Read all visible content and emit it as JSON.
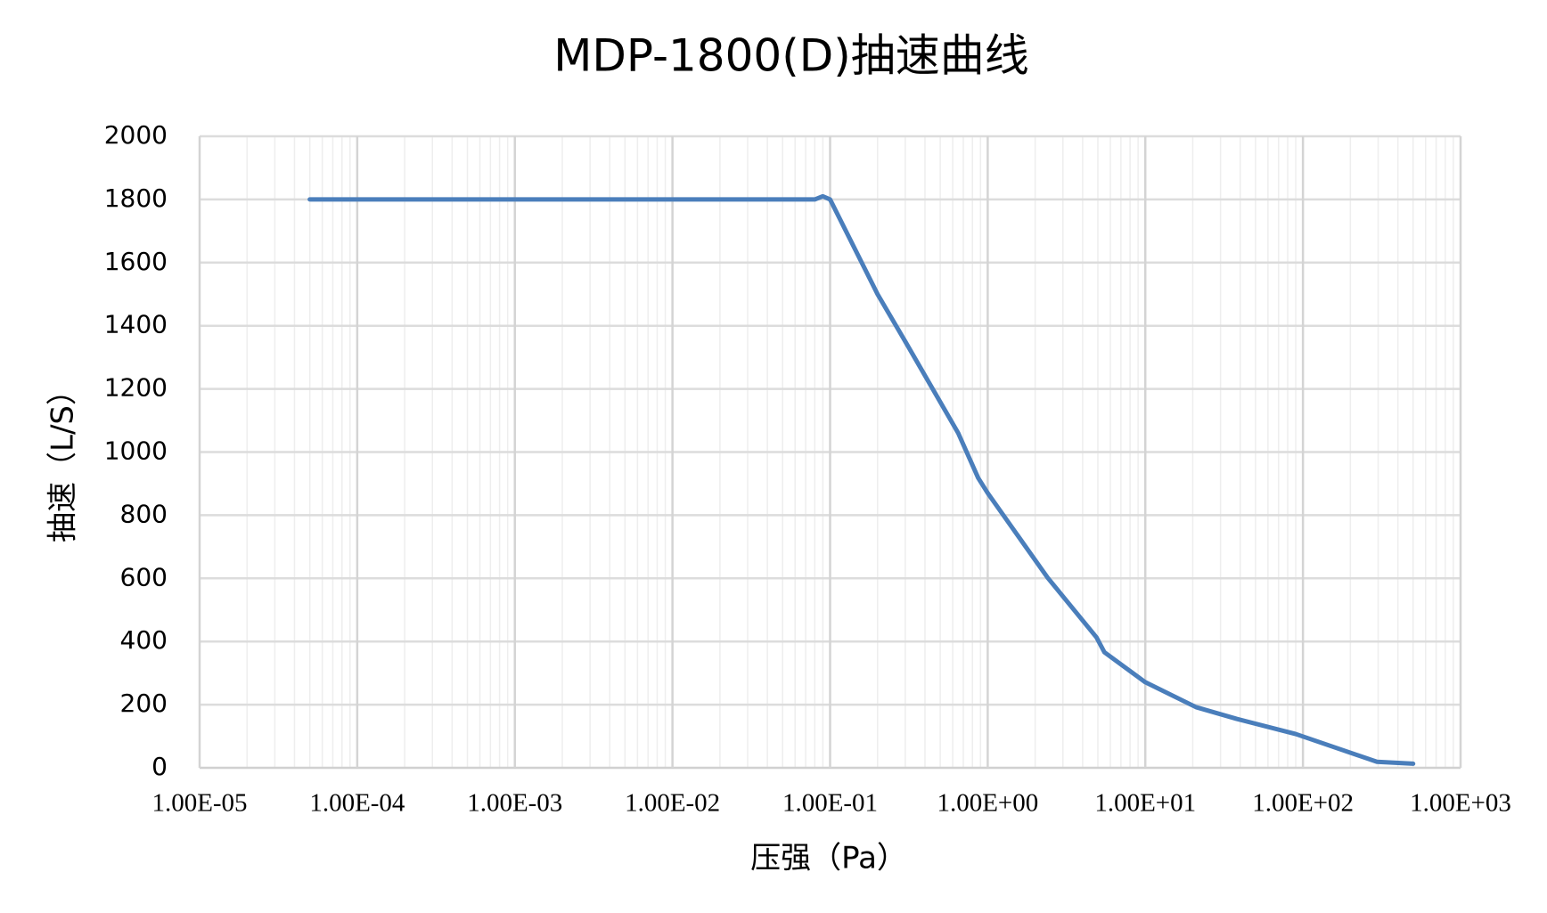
{
  "chart_data": {
    "type": "line",
    "title": "MDP-1800(D)抽速曲线",
    "x_label": "压强（Pa）",
    "y_label": "抽速（L/S）",
    "x_scale": "log",
    "grid": true,
    "minor_grid": true,
    "xlim": [
      1e-05,
      1000
    ],
    "xticks": [
      {
        "value": 1e-05,
        "label": "1.00E-05"
      },
      {
        "value": 0.0001,
        "label": "1.00E-04"
      },
      {
        "value": 0.001,
        "label": "1.00E-03"
      },
      {
        "value": 0.01,
        "label": "1.00E-02"
      },
      {
        "value": 0.1,
        "label": "1.00E-01"
      },
      {
        "value": 1,
        "label": "1.00E+00"
      },
      {
        "value": 10,
        "label": "1.00E+01"
      },
      {
        "value": 100,
        "label": "1.00E+02"
      },
      {
        "value": 1000,
        "label": "1.00E+03"
      }
    ],
    "ylim": [
      0,
      2000
    ],
    "yticks": [
      0,
      200,
      400,
      600,
      800,
      1000,
      1200,
      1400,
      1600,
      1800,
      2000
    ],
    "x": [
      5e-05,
      0.08,
      0.09,
      0.1,
      0.2,
      0.3,
      0.65,
      0.87,
      1,
      2.4,
      4.9,
      5.5,
      10,
      21,
      38,
      90,
      295,
      500
    ],
    "series": [
      {
        "color": "#4a7ebb",
        "values": [
          1800,
          1800,
          1810,
          1800,
          1500,
          1350,
          1060,
          918,
          870,
          602,
          413,
          366,
          271,
          192,
          155,
          107,
          19,
          13
        ]
      }
    ]
  }
}
